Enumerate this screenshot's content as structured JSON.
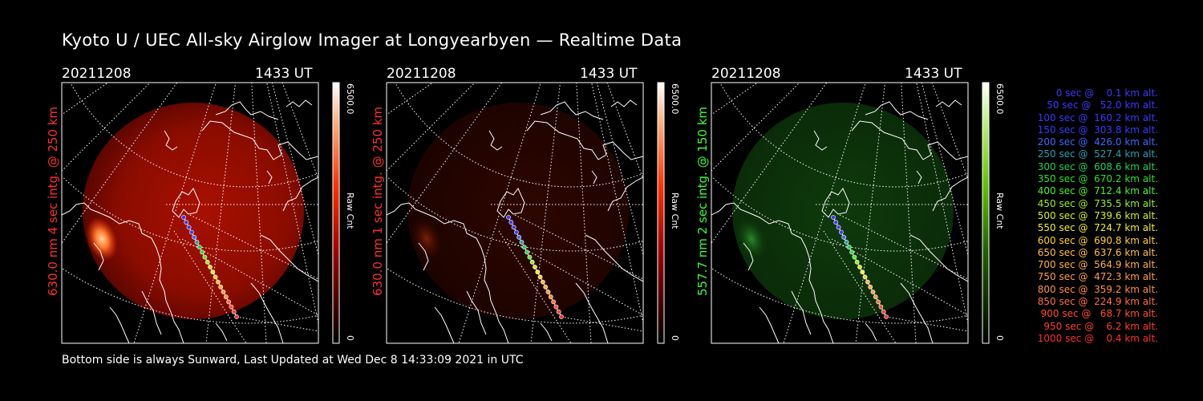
{
  "title": "Kyoto U / UEC All-sky Airglow Imager at Longyearbyen — Realtime Data",
  "footer": "Bottom side is always Sunward, Last Updated at Wed Dec  8 14:33:09 2021 in UTC",
  "colors": {
    "red_label": "#ff3030",
    "green_label": "#39ff39"
  },
  "panels": [
    {
      "date": "20211208",
      "time": "1433 UT",
      "side_label": "630.0 nm 4 sec intg. @ 250 km",
      "side_color": "#ff3030",
      "cb_max": "6500.0",
      "cb_min": "0",
      "cb_unit": "Raw Cnt",
      "cb_color": "red"
    },
    {
      "date": "20211208",
      "time": "1433 UT",
      "side_label": "630.0 nm 1 sec intg. @ 250 km",
      "side_color": "#ff3030",
      "cb_max": "6500.0",
      "cb_min": "0",
      "cb_unit": "Raw Cnt",
      "cb_color": "red"
    },
    {
      "date": "20211208",
      "time": "1433 UT",
      "side_label": "557.7 nm 2 sec intg. @ 150 km",
      "side_color": "#39ff39",
      "cb_max": "6500.0",
      "cb_min": "0",
      "cb_unit": "Raw Cnt",
      "cb_color": "green"
    }
  ],
  "legend": [
    {
      "text": "0 sec @    0.1 km alt.",
      "color": "#3a3aff"
    },
    {
      "text": "50 sec @   52.0 km alt.",
      "color": "#3a3aff"
    },
    {
      "text": "100 sec @  160.2 km alt.",
      "color": "#3a3aff"
    },
    {
      "text": "150 sec @  303.8 km alt.",
      "color": "#3a3aff"
    },
    {
      "text": "200 sec @  426.0 km alt.",
      "color": "#3a6aff"
    },
    {
      "text": "250 sec @  527.4 km alt.",
      "color": "#2aa0b0"
    },
    {
      "text": "300 sec @  608.6 km alt.",
      "color": "#20d060"
    },
    {
      "text": "350 sec @  670.2 km alt.",
      "color": "#30e030"
    },
    {
      "text": "400 sec @  712.4 km alt.",
      "color": "#50f030"
    },
    {
      "text": "450 sec @  735.5 km alt.",
      "color": "#a0f020"
    },
    {
      "text": "500 sec @  739.6 km alt.",
      "color": "#d0f020"
    },
    {
      "text": "550 sec @  724.7 km alt.",
      "color": "#f0f030"
    },
    {
      "text": "600 sec @  690.8 km alt.",
      "color": "#ffd030"
    },
    {
      "text": "650 sec @  637.6 km alt.",
      "color": "#ffc040"
    },
    {
      "text": "700 sec @  564.9 km alt.",
      "color": "#ffb040"
    },
    {
      "text": "750 sec @  472.3 km alt.",
      "color": "#ffa040"
    },
    {
      "text": "800 sec @  359.2 km alt.",
      "color": "#ff9040"
    },
    {
      "text": "850 sec @  224.9 km alt.",
      "color": "#ff7040"
    },
    {
      "text": "900 sec @   68.7 km alt.",
      "color": "#ff5030"
    },
    {
      "text": "950 sec @    6.2 km alt.",
      "color": "#ff4030"
    },
    {
      "text": "1000 sec @    0.4 km alt.",
      "color": "#ff3030"
    }
  ]
}
